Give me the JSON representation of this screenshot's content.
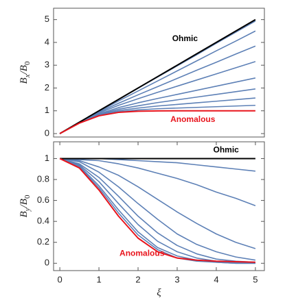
{
  "chart_data": [
    {
      "type": "line",
      "ylabel": [
        {
          "text": "B"
        },
        {
          "text": "x",
          "sub": true
        },
        {
          "text": "/B"
        },
        {
          "text": "0",
          "sub": true
        }
      ],
      "x": [
        0,
        0.5,
        1,
        1.5,
        2,
        2.5,
        3,
        3.5,
        4,
        4.5,
        5
      ],
      "xlim": [
        -0.16,
        5.23
      ],
      "ylim": [
        -0.15,
        5.5
      ],
      "yticks": [
        0,
        1,
        2,
        3,
        4,
        5
      ],
      "annotations": [
        {
          "text": "Ohmic",
          "color": "#000000"
        },
        {
          "text": "Anomalous",
          "color": "#e8141c"
        }
      ],
      "series": [
        {
          "color": "#5d80b6",
          "values": [
            0,
            0.5,
            1.0,
            1.49,
            1.99,
            2.48,
            2.97,
            3.46,
            3.96,
            4.45,
            4.94
          ]
        },
        {
          "color": "#5d80b6",
          "values": [
            0,
            0.5,
            0.97,
            1.43,
            1.87,
            2.31,
            2.75,
            3.19,
            3.63,
            4.06,
            4.5
          ]
        },
        {
          "color": "#5d80b6",
          "values": [
            0,
            0.49,
            0.94,
            1.33,
            1.7,
            2.06,
            2.42,
            2.78,
            3.13,
            3.49,
            3.84
          ]
        },
        {
          "color": "#5d80b6",
          "values": [
            0,
            0.48,
            0.9,
            1.24,
            1.53,
            1.81,
            2.08,
            2.35,
            2.62,
            2.89,
            3.16
          ]
        },
        {
          "color": "#5d80b6",
          "values": [
            0,
            0.47,
            0.86,
            1.14,
            1.35,
            1.54,
            1.72,
            1.9,
            2.08,
            2.26,
            2.44
          ]
        },
        {
          "color": "#5d80b6",
          "values": [
            0,
            0.47,
            0.83,
            1.07,
            1.22,
            1.36,
            1.48,
            1.6,
            1.72,
            1.84,
            1.96
          ]
        },
        {
          "color": "#5d80b6",
          "values": [
            0,
            0.47,
            0.81,
            1.01,
            1.12,
            1.21,
            1.28,
            1.35,
            1.42,
            1.49,
            1.56
          ]
        },
        {
          "color": "#5d80b6",
          "values": [
            0,
            0.46,
            0.79,
            0.96,
            1.04,
            1.09,
            1.12,
            1.15,
            1.18,
            1.21,
            1.24
          ]
        },
        {
          "color": "#000000",
          "values": [
            0,
            0.5,
            1,
            1.5,
            2,
            2.5,
            3,
            3.5,
            4,
            4.5,
            5
          ]
        },
        {
          "color": "#e8141c",
          "values": [
            0,
            0.46,
            0.78,
            0.93,
            0.98,
            0.995,
            1,
            1,
            1,
            1,
            1
          ]
        }
      ]
    },
    {
      "type": "line",
      "ylabel": [
        {
          "text": "B"
        },
        {
          "text": "y",
          "sub": true
        },
        {
          "text": "/B"
        },
        {
          "text": "0",
          "sub": true
        }
      ],
      "xlabel": "ξ",
      "x": [
        0,
        0.5,
        1,
        1.5,
        2,
        2.5,
        3,
        3.5,
        4,
        4.5,
        5
      ],
      "xlim": [
        -0.16,
        5.23
      ],
      "xticks": [
        0,
        1,
        2,
        3,
        4,
        5
      ],
      "ylim": [
        -0.07,
        1.16
      ],
      "yticks": [
        0,
        0.2,
        0.4,
        0.6,
        0.8,
        1
      ],
      "annotations": [
        {
          "text": "Ohmic",
          "color": "#000000"
        },
        {
          "text": "Anomalous",
          "color": "#e8141c"
        }
      ],
      "series": [
        {
          "color": "#5d80b6",
          "values": [
            1,
            1,
            1,
            0.99,
            0.98,
            0.97,
            0.96,
            0.94,
            0.92,
            0.9,
            0.88
          ]
        },
        {
          "color": "#5d80b6",
          "values": [
            1,
            0.99,
            0.98,
            0.95,
            0.91,
            0.86,
            0.81,
            0.75,
            0.68,
            0.62,
            0.55
          ]
        },
        {
          "color": "#5d80b6",
          "values": [
            1,
            0.98,
            0.92,
            0.84,
            0.73,
            0.61,
            0.49,
            0.38,
            0.28,
            0.2,
            0.14
          ]
        },
        {
          "color": "#5d80b6",
          "values": [
            1,
            0.97,
            0.87,
            0.73,
            0.57,
            0.42,
            0.28,
            0.18,
            0.11,
            0.06,
            0.03
          ]
        },
        {
          "color": "#5d80b6",
          "values": [
            1,
            0.95,
            0.82,
            0.64,
            0.45,
            0.29,
            0.17,
            0.09,
            0.04,
            0.02,
            0.01
          ]
        },
        {
          "color": "#5d80b6",
          "values": [
            1,
            0.94,
            0.78,
            0.57,
            0.37,
            0.21,
            0.11,
            0.05,
            0.02,
            0.01,
            0
          ]
        },
        {
          "color": "#5d80b6",
          "values": [
            1,
            0.93,
            0.74,
            0.51,
            0.3,
            0.15,
            0.07,
            0.03,
            0.01,
            0,
            0
          ]
        },
        {
          "color": "#5d80b6",
          "values": [
            1,
            0.92,
            0.72,
            0.48,
            0.27,
            0.13,
            0.05,
            0.02,
            0.01,
            0,
            0
          ]
        },
        {
          "color": "#000000",
          "values": [
            1,
            1,
            1,
            1,
            1,
            1,
            1,
            1,
            1,
            1,
            1
          ]
        },
        {
          "color": "#e8141c",
          "values": [
            1,
            0.91,
            0.7,
            0.45,
            0.24,
            0.11,
            0.05,
            0.03,
            0.02,
            0.015,
            0.01
          ]
        }
      ]
    }
  ]
}
